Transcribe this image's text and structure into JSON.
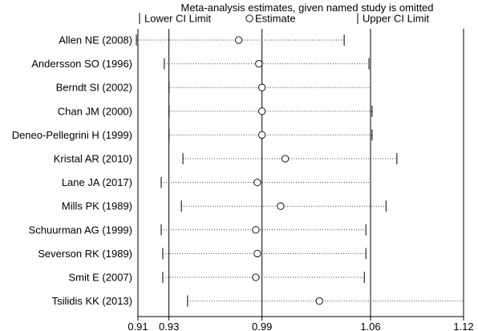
{
  "chart_data": {
    "type": "scatter",
    "title": "Meta-analysis estimates, given named study is omitted",
    "legend": {
      "placement": "top",
      "lower": "Lower CI Limit",
      "estimate": "Estimate",
      "upper": "Upper CI Limit"
    },
    "xlim": [
      0.91,
      1.12
    ],
    "x_ticks": [
      0.91,
      0.93,
      0.99,
      1.06,
      1.12
    ],
    "x_tick_labels": [
      "0.91",
      "0.93",
      "0.99",
      "1.06",
      "1.12"
    ],
    "reference_lines": [
      0.93,
      0.99,
      1.06
    ],
    "grid": false,
    "studies": [
      {
        "label": "Allen NE (2008)",
        "lower": 0.909,
        "estimate": 0.975,
        "upper": 1.043
      },
      {
        "label": "Andersson SO (1996)",
        "lower": 0.927,
        "estimate": 0.988,
        "upper": 1.059
      },
      {
        "label": "Berndt SI (2002)",
        "lower": 0.93,
        "estimate": 0.99,
        "upper": 1.06
      },
      {
        "label": "Chan JM (2000)",
        "lower": 0.93,
        "estimate": 0.99,
        "upper": 1.061
      },
      {
        "label": "Deneo-Pellegrini H (1999)",
        "lower": 0.93,
        "estimate": 0.99,
        "upper": 1.061
      },
      {
        "label": "Kristal AR (2010)",
        "lower": 0.939,
        "estimate": 1.005,
        "upper": 1.077
      },
      {
        "label": "Lane JA (2017)",
        "lower": 0.925,
        "estimate": 0.987,
        "upper": 1.06
      },
      {
        "label": "Mills PK (1989)",
        "lower": 0.938,
        "estimate": 1.002,
        "upper": 1.07
      },
      {
        "label": "Schuurman AG (1999)",
        "lower": 0.925,
        "estimate": 0.986,
        "upper": 1.057
      },
      {
        "label": "Severson RK (1989)",
        "lower": 0.926,
        "estimate": 0.987,
        "upper": 1.057
      },
      {
        "label": "Smit E (2007)",
        "lower": 0.926,
        "estimate": 0.986,
        "upper": 1.056
      },
      {
        "label": "Tsilidis KK (2013)",
        "lower": 0.942,
        "estimate": 1.027,
        "upper": 1.12
      }
    ]
  }
}
